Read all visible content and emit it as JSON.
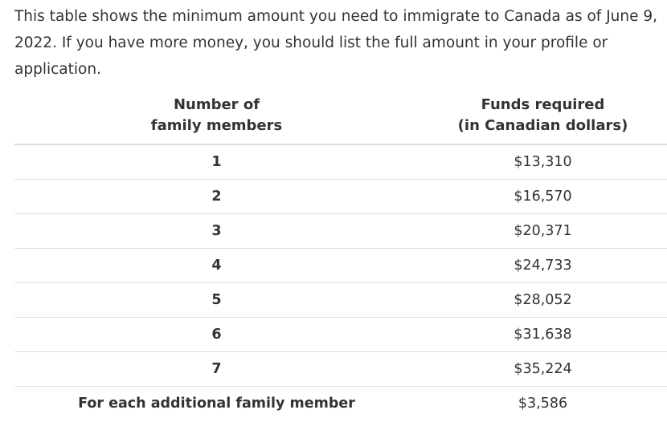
{
  "intro": "This table shows the minimum amount you need to immigrate to Canada as of June 9, 2022. If you have more money, you should list the full amount in your profile or application.",
  "table": {
    "header": {
      "col1_line1": "Number of",
      "col1_line2": "family members",
      "col2_line1": "Funds required",
      "col2_line2": "(in Canadian dollars)"
    },
    "rows": [
      {
        "members": "1",
        "funds": "$13,310"
      },
      {
        "members": "2",
        "funds": "$16,570"
      },
      {
        "members": "3",
        "funds": "$20,371"
      },
      {
        "members": "4",
        "funds": "$24,733"
      },
      {
        "members": "5",
        "funds": "$28,052"
      },
      {
        "members": "6",
        "funds": "$31,638"
      },
      {
        "members": "7",
        "funds": "$35,224"
      },
      {
        "members": "For each additional family member",
        "funds": "$3,586"
      }
    ]
  }
}
